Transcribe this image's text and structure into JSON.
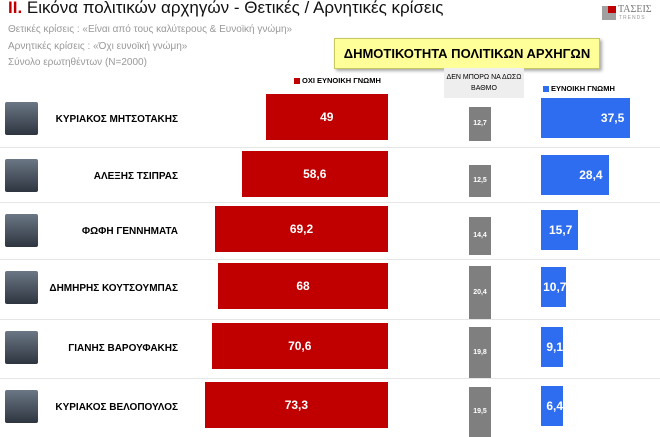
{
  "header": {
    "title_num": "II.",
    "title": " Εικόνα πολιτικών αρχηγών  - Θετικές / Αρνητικές κρίσεις",
    "subtitles": [
      "Θετικές κρίσεις : «Είναι από τους καλύτερους &  Ευνοϊκή γνώμη»",
      "Αρνητικές κρίσεις : «Όχι ευνοϊκή γνώμη»",
      "Σύνολο ερωτηθέντων (N=2000)"
    ],
    "logo": "ΤΑΣΕΙΣ",
    "logo_sub": "TRENDS"
  },
  "chart_data": {
    "type": "bar",
    "title": "ΔΗΜΟΤΙΚΟΤΗΤΑ ΠΟΛΙΤΙΚΩΝ ΑΡΧΗΓΩΝ",
    "categories": [
      "ΚΥΡΙΑΚΟΣ ΜΗΤΣΟΤΑΚΗΣ",
      "ΑΛΕΞΗΣ ΤΣΙΠΡΑΣ",
      "ΦΩΦΗ ΓΕΝΝΗΜΑΤΑ",
      "ΔΗΜΗΡΗΣ ΚΟΥΤΣΟΥΜΠΑΣ",
      "ΓΙΑΝΗΣ ΒΑΡΟΥΦΑΚΗΣ",
      "ΚΥΡΙΑΚΟΣ ΒΕΛΟΠΟΥΛΟΣ"
    ],
    "series": [
      {
        "name": "ΟΧΙ ΕΥΝΟΙΚΗ ΓΝΩΜΗ",
        "color": "#c00000",
        "values": [
          49,
          58.6,
          69.2,
          68,
          70.6,
          73.3
        ],
        "labels": [
          "49",
          "58,6",
          "69,2",
          "68",
          "70,6",
          "73,3"
        ]
      },
      {
        "name": "ΔΕΝ ΜΠΟΡΩ ΝΑ ΔΩΣΩ ΒΑΘΜΟ",
        "color": "#7f7f7f",
        "values": [
          12.7,
          12.5,
          14.4,
          20.4,
          19.8,
          19.5
        ],
        "labels": [
          "12,7",
          "12,5",
          "14,4",
          "20,4",
          "19,8",
          "19,5"
        ]
      },
      {
        "name": "ΕΥΝΟΙΚΗ ΓΝΩΜΗ",
        "color": "#2e6df0",
        "values": [
          37.5,
          28.4,
          15.7,
          10.7,
          9.1,
          6.4
        ],
        "labels": [
          "37,5",
          "28,4",
          "15,7",
          "10,7",
          "9,1",
          "6,4"
        ]
      }
    ]
  }
}
